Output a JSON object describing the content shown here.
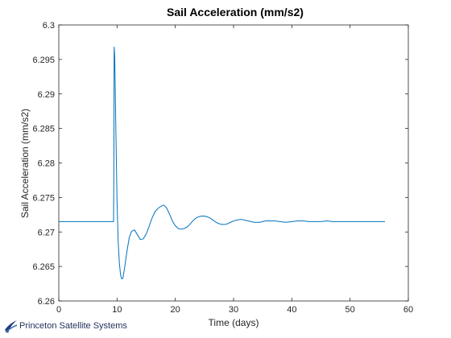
{
  "watermark": {
    "text": "Princeton Satellite Systems"
  },
  "chart_data": {
    "type": "line",
    "title": "Sail Acceleration (mm/s2)",
    "xlabel": "Time (days)",
    "ylabel": "Sail Acceleration (mm/s2)",
    "xlim": [
      0,
      60
    ],
    "ylim": [
      6.26,
      6.3
    ],
    "xticks": [
      0,
      10,
      20,
      30,
      40,
      50,
      60
    ],
    "yticks": [
      6.26,
      6.265,
      6.27,
      6.275,
      6.28,
      6.285,
      6.29,
      6.295,
      6.3
    ],
    "xtick_labels": [
      "0",
      "10",
      "20",
      "30",
      "40",
      "50",
      "60"
    ],
    "ytick_labels": [
      "6.26",
      "6.265",
      "6.27",
      "6.275",
      "6.28",
      "6.285",
      "6.29",
      "6.295",
      "6.3"
    ],
    "grid": false,
    "series": [
      {
        "color": "#0072bd",
        "x": [
          0,
          9.4,
          9.45,
          9.5,
          9.6,
          9.8,
          10.0,
          10.2,
          10.4,
          10.6,
          10.8,
          11.0,
          11.3,
          11.7,
          12.1,
          12.5,
          13.0,
          13.5,
          14.0,
          14.5,
          15.0,
          15.5,
          16.0,
          16.5,
          17.0,
          17.5,
          18.0,
          18.5,
          19.0,
          19.5,
          20.0,
          20.5,
          21.0,
          21.5,
          22.0,
          22.5,
          23.0,
          23.5,
          24.0,
          24.5,
          25.0,
          25.5,
          26.0,
          26.5,
          27.0,
          27.5,
          28.0,
          28.5,
          29.0,
          29.5,
          30.0,
          30.5,
          31.0,
          31.5,
          32.0,
          32.5,
          33.0,
          33.5,
          34.0,
          34.5,
          35.0,
          35.5,
          36.0,
          36.5,
          37.0,
          38.0,
          39.0,
          40.0,
          41.0,
          42.0,
          43.0,
          44.0,
          45.0,
          46.0,
          47.0,
          48.0,
          49.0,
          50.0,
          51.0,
          52.0,
          53.0,
          54.0,
          55.0,
          56.0
        ],
        "y": [
          6.2715,
          6.2715,
          6.2785,
          6.2968,
          6.2955,
          6.2845,
          6.2745,
          6.2685,
          6.2655,
          6.2638,
          6.2632,
          6.2633,
          6.2648,
          6.2672,
          6.2692,
          6.2701,
          6.2703,
          6.2696,
          6.2689,
          6.269,
          6.2697,
          6.2708,
          6.272,
          6.2729,
          6.2734,
          6.2737,
          6.2739,
          6.2735,
          6.2726,
          6.2716,
          6.2709,
          6.2705,
          6.2704,
          6.2705,
          6.2707,
          6.2711,
          6.2716,
          6.272,
          6.2722,
          6.2723,
          6.2723,
          6.2722,
          6.272,
          6.2717,
          6.2714,
          6.2712,
          6.2711,
          6.2711,
          6.2712,
          6.2714,
          6.2716,
          6.2717,
          6.2718,
          6.2718,
          6.2717,
          6.2716,
          6.2715,
          6.2714,
          6.2714,
          6.2714,
          6.2715,
          6.2716,
          6.2716,
          6.2716,
          6.2716,
          6.2715,
          6.2714,
          6.2715,
          6.2716,
          6.2716,
          6.2715,
          6.2715,
          6.2715,
          6.2716,
          6.2715,
          6.2715,
          6.2715,
          6.2715,
          6.2715,
          6.2715,
          6.2715,
          6.2715,
          6.2715,
          6.2715
        ]
      }
    ]
  }
}
